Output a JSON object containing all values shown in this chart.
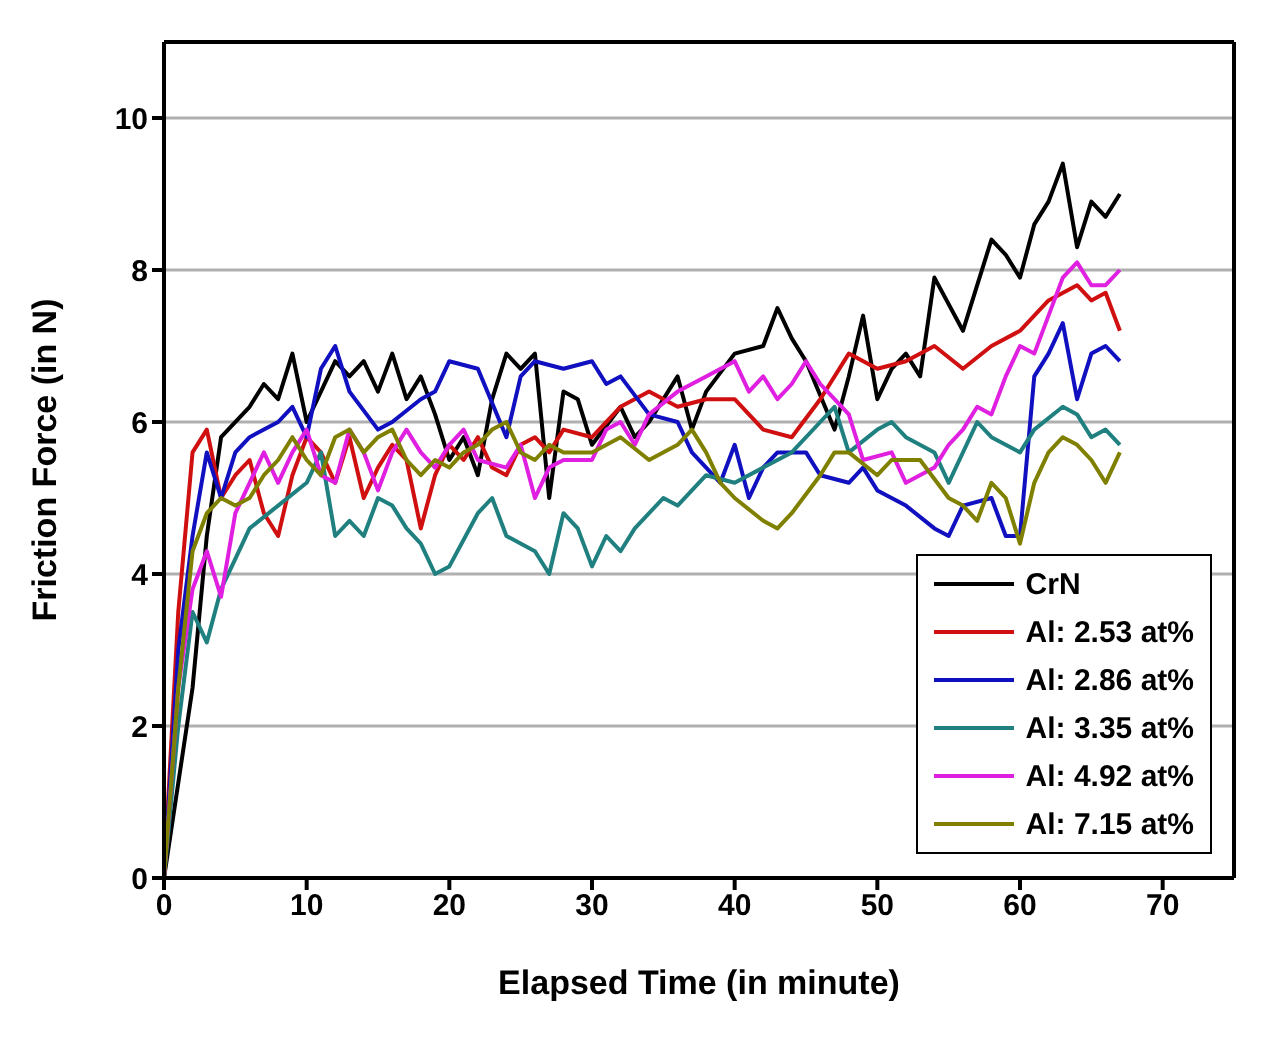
{
  "chart_data": {
    "type": "line",
    "xlabel": "Elapsed Time (in minute)",
    "ylabel": "Friction Force (in N)",
    "xlim": [
      0,
      75
    ],
    "ylim": [
      0,
      11
    ],
    "xticks": [
      0,
      10,
      20,
      30,
      40,
      50,
      60,
      70
    ],
    "yticks": [
      0,
      2,
      4,
      6,
      8,
      10
    ],
    "grid": "y",
    "legend": "bottom right",
    "marker": "none",
    "line_style": "solid",
    "series": [
      {
        "name": "CrN",
        "color": "#000000",
        "x": [
          0,
          2,
          3,
          4,
          6,
          7,
          8,
          9,
          10,
          11,
          12,
          13,
          14,
          15,
          16,
          17,
          18,
          19,
          20,
          21,
          22,
          23,
          24,
          25,
          26,
          27,
          28,
          29,
          30,
          32,
          33,
          34,
          36,
          37,
          38,
          40,
          42,
          43,
          44,
          45,
          47,
          48,
          49,
          50,
          51,
          52,
          53,
          54,
          56,
          57,
          58,
          59,
          60,
          61,
          62,
          63,
          64,
          65,
          66,
          67
        ],
        "values": [
          0,
          2.5,
          4.5,
          5.8,
          6.2,
          6.5,
          6.3,
          6.9,
          6.0,
          6.4,
          6.8,
          6.6,
          6.8,
          6.4,
          6.9,
          6.3,
          6.6,
          6.1,
          5.5,
          5.8,
          5.3,
          6.3,
          6.9,
          6.7,
          6.9,
          5.0,
          6.4,
          6.3,
          5.7,
          6.2,
          5.8,
          6.0,
          6.6,
          5.9,
          6.4,
          6.9,
          7.0,
          7.5,
          7.1,
          6.8,
          5.9,
          6.6,
          7.4,
          6.3,
          6.7,
          6.9,
          6.6,
          7.9,
          7.2,
          7.8,
          8.4,
          8.2,
          7.9,
          8.6,
          8.9,
          9.4,
          8.3,
          8.9,
          8.7,
          9.0
        ]
      },
      {
        "name": "Al: 2.53 at%",
        "color": "#d01010",
        "x": [
          0,
          1,
          2,
          3,
          4,
          5,
          6,
          7,
          8,
          9,
          10,
          11,
          12,
          13,
          14,
          15,
          16,
          17,
          18,
          19,
          20,
          21,
          22,
          23,
          24,
          25,
          26,
          27,
          28,
          30,
          32,
          34,
          36,
          38,
          40,
          42,
          44,
          46,
          48,
          50,
          52,
          54,
          56,
          58,
          60,
          62,
          64,
          65,
          66,
          67
        ],
        "values": [
          0,
          3.5,
          5.6,
          5.9,
          5.0,
          5.3,
          5.5,
          4.8,
          4.5,
          5.3,
          5.8,
          5.6,
          5.2,
          5.8,
          5.0,
          5.4,
          5.7,
          5.5,
          4.6,
          5.3,
          5.7,
          5.5,
          5.8,
          5.4,
          5.3,
          5.7,
          5.8,
          5.6,
          5.9,
          5.8,
          6.2,
          6.4,
          6.2,
          6.3,
          6.3,
          5.9,
          5.8,
          6.3,
          6.9,
          6.7,
          6.8,
          7.0,
          6.7,
          7.0,
          7.2,
          7.6,
          7.8,
          7.6,
          7.7,
          7.2
        ]
      },
      {
        "name": "Al: 2.86 at%",
        "color": "#1010c0",
        "x": [
          0,
          1,
          2,
          3,
          4,
          5,
          6,
          8,
          9,
          10,
          11,
          12,
          13,
          15,
          16,
          18,
          19,
          20,
          22,
          24,
          25,
          26,
          28,
          30,
          31,
          32,
          34,
          36,
          37,
          39,
          40,
          41,
          42,
          43,
          45,
          46,
          48,
          49,
          50,
          52,
          54,
          55,
          56,
          58,
          59,
          60,
          61,
          62,
          63,
          64,
          65,
          66,
          67
        ],
        "values": [
          0,
          3.0,
          4.5,
          5.6,
          5.0,
          5.6,
          5.8,
          6.0,
          6.2,
          5.8,
          6.7,
          7.0,
          6.4,
          5.9,
          6.0,
          6.3,
          6.4,
          6.8,
          6.7,
          5.8,
          6.6,
          6.8,
          6.7,
          6.8,
          6.5,
          6.6,
          6.1,
          6.0,
          5.6,
          5.2,
          5.7,
          5.0,
          5.4,
          5.6,
          5.6,
          5.3,
          5.2,
          5.4,
          5.1,
          4.9,
          4.6,
          4.5,
          4.9,
          5.0,
          4.5,
          4.5,
          6.6,
          6.9,
          7.3,
          6.3,
          6.9,
          7.0,
          6.8
        ]
      },
      {
        "name": "Al: 3.35 at%",
        "color": "#208080",
        "x": [
          0,
          1,
          2,
          3,
          4,
          5,
          6,
          8,
          10,
          11,
          12,
          13,
          14,
          15,
          16,
          17,
          18,
          19,
          20,
          22,
          23,
          24,
          26,
          27,
          28,
          29,
          30,
          31,
          32,
          33,
          35,
          36,
          37,
          38,
          40,
          42,
          44,
          46,
          47,
          48,
          50,
          51,
          52,
          54,
          55,
          57,
          58,
          60,
          61,
          63,
          64,
          65,
          66,
          67
        ],
        "values": [
          0,
          2.0,
          3.5,
          3.1,
          3.8,
          4.2,
          4.6,
          4.9,
          5.2,
          5.6,
          4.5,
          4.7,
          4.5,
          5.0,
          4.9,
          4.6,
          4.4,
          4.0,
          4.1,
          4.8,
          5.0,
          4.5,
          4.3,
          4.0,
          4.8,
          4.6,
          4.1,
          4.5,
          4.3,
          4.6,
          5.0,
          4.9,
          5.1,
          5.3,
          5.2,
          5.4,
          5.6,
          6.0,
          6.2,
          5.6,
          5.9,
          6.0,
          5.8,
          5.6,
          5.2,
          6.0,
          5.8,
          5.6,
          5.9,
          6.2,
          6.1,
          5.8,
          5.9,
          5.7
        ]
      },
      {
        "name": "Al: 4.92 at%",
        "color": "#e020e0",
        "x": [
          0,
          1,
          2,
          3,
          4,
          5,
          6,
          7,
          8,
          9,
          10,
          11,
          12,
          13,
          14,
          15,
          16,
          17,
          18,
          19,
          20,
          21,
          22,
          24,
          25,
          26,
          27,
          28,
          30,
          31,
          32,
          33,
          34,
          36,
          38,
          40,
          41,
          42,
          43,
          44,
          45,
          46,
          47,
          48,
          49,
          51,
          52,
          54,
          55,
          56,
          57,
          58,
          59,
          60,
          61,
          62,
          63,
          64,
          65,
          66,
          67
        ],
        "values": [
          0,
          2.5,
          3.8,
          4.3,
          3.7,
          4.8,
          5.2,
          5.6,
          5.2,
          5.6,
          5.9,
          5.3,
          5.2,
          5.9,
          5.6,
          5.1,
          5.6,
          5.9,
          5.6,
          5.4,
          5.7,
          5.9,
          5.5,
          5.4,
          5.7,
          5.0,
          5.4,
          5.5,
          5.5,
          5.9,
          6.0,
          5.7,
          6.1,
          6.4,
          6.6,
          6.8,
          6.4,
          6.6,
          6.3,
          6.5,
          6.8,
          6.5,
          6.3,
          6.1,
          5.5,
          5.6,
          5.2,
          5.4,
          5.7,
          5.9,
          6.2,
          6.1,
          6.6,
          7.0,
          6.9,
          7.4,
          7.9,
          8.1,
          7.8,
          7.8,
          8.0
        ]
      },
      {
        "name": "Al: 7.15 at%",
        "color": "#808000",
        "x": [
          0,
          1,
          2,
          3,
          4,
          5,
          6,
          7,
          8,
          9,
          10,
          11,
          12,
          13,
          14,
          15,
          16,
          17,
          18,
          19,
          20,
          21,
          22,
          23,
          24,
          25,
          26,
          27,
          28,
          30,
          32,
          34,
          36,
          37,
          38,
          39,
          40,
          42,
          43,
          44,
          46,
          47,
          48,
          50,
          51,
          53,
          55,
          56,
          57,
          58,
          59,
          60,
          61,
          62,
          63,
          64,
          65,
          66,
          67
        ],
        "values": [
          0,
          2.5,
          4.3,
          4.8,
          5.0,
          4.9,
          5.0,
          5.3,
          5.5,
          5.8,
          5.5,
          5.3,
          5.8,
          5.9,
          5.6,
          5.8,
          5.9,
          5.5,
          5.3,
          5.5,
          5.4,
          5.6,
          5.7,
          5.9,
          6.0,
          5.6,
          5.5,
          5.7,
          5.6,
          5.6,
          5.8,
          5.5,
          5.7,
          5.9,
          5.6,
          5.2,
          5.0,
          4.7,
          4.6,
          4.8,
          5.3,
          5.6,
          5.6,
          5.3,
          5.5,
          5.5,
          5.0,
          4.9,
          4.7,
          5.2,
          5.0,
          4.4,
          5.2,
          5.6,
          5.8,
          5.7,
          5.5,
          5.2,
          5.6
        ]
      }
    ]
  }
}
